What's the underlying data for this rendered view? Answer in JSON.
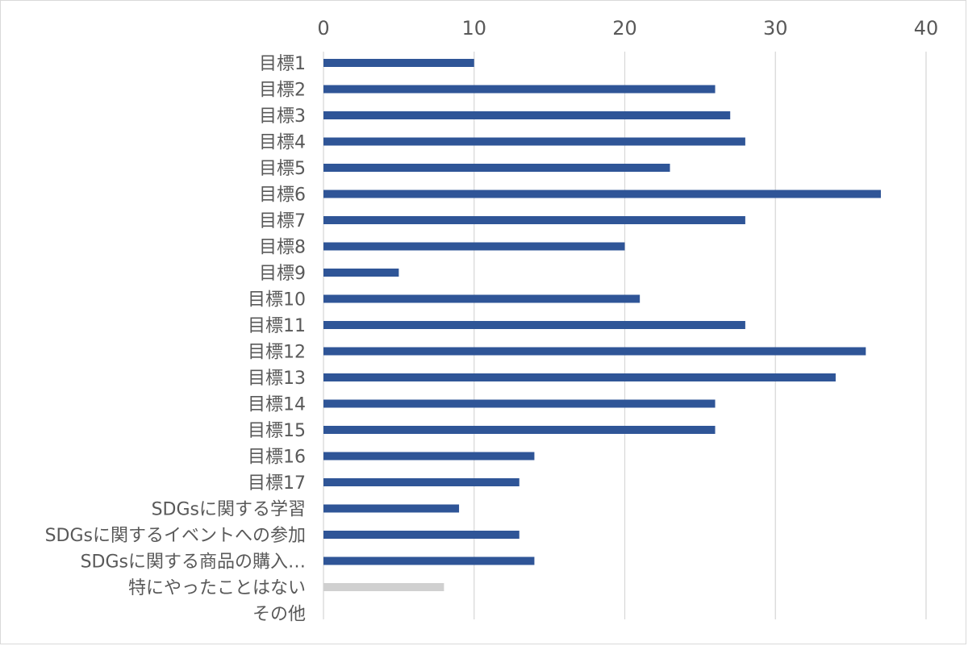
{
  "chart_data": {
    "type": "bar",
    "orientation": "horizontal",
    "title": "",
    "xlabel": "",
    "ylabel": "",
    "xlim": [
      0,
      40
    ],
    "ticks": [
      "0",
      "10",
      "20",
      "30",
      "40"
    ],
    "tick_values": [
      0,
      10,
      20,
      30,
      40
    ],
    "grid": true,
    "axis_position": "top",
    "categories": [
      "目標1",
      "目標2",
      "目標3",
      "目標4",
      "目標5",
      "目標6",
      "目標7",
      "目標8",
      "目標9",
      "目標10",
      "目標11",
      "目標12",
      "目標13",
      "目標14",
      "目標15",
      "目標16",
      "目標17",
      "SDGsに関する学習",
      "SDGsに関するイベントへの参加",
      "SDGsに関する商品の購入…",
      "特にやったことはない",
      "その他"
    ],
    "values": [
      10,
      26,
      27,
      28,
      23,
      37,
      28,
      20,
      5,
      21,
      28,
      36,
      34,
      26,
      26,
      14,
      13,
      9,
      13,
      14,
      8,
      0
    ],
    "colors": {
      "primary": "#2f5597",
      "none": "#d0d0d0",
      "grid": "#d9d9d9",
      "label": "#595959"
    },
    "bar_color_index": [
      0,
      0,
      0,
      0,
      0,
      0,
      0,
      0,
      0,
      0,
      0,
      0,
      0,
      0,
      0,
      0,
      0,
      0,
      0,
      0,
      1,
      1
    ]
  }
}
